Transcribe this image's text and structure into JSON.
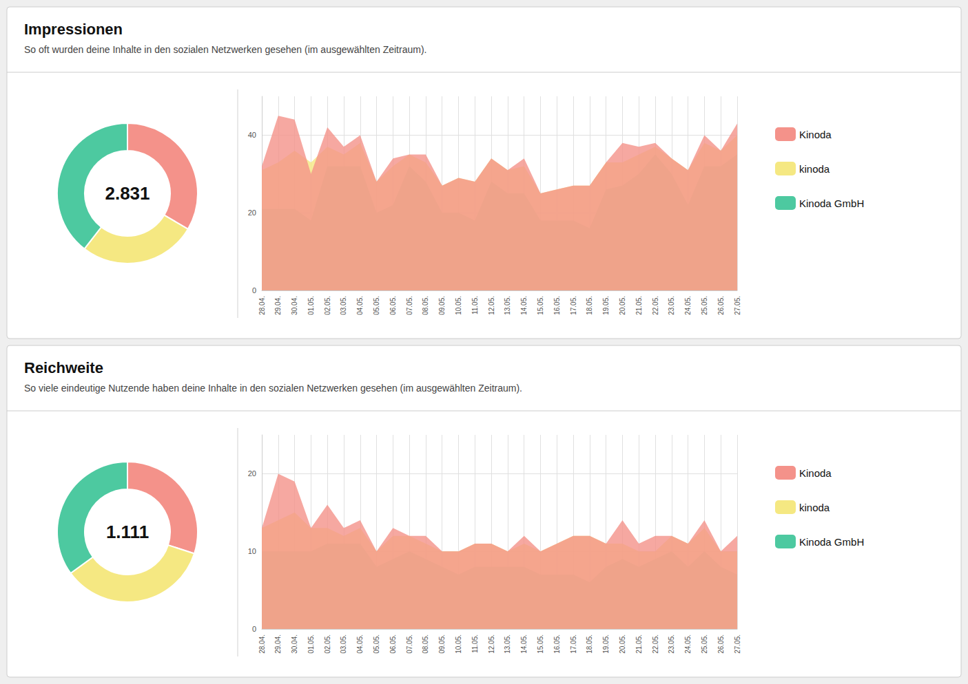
{
  "chart_data": [
    {
      "type": "pie",
      "categories": [
        "Kinoda",
        "kinoda",
        "Kinoda GmbH"
      ],
      "values": [
        0.335,
        0.27,
        0.395
      ],
      "colors": [
        "#F4928A",
        "#F5E882",
        "#4DC9A0"
      ],
      "annotations": [
        "2.831"
      ]
    },
    {
      "type": "area",
      "title": "Impressionen",
      "subtitle": "So oft wurden deine Inhalte in den sozialen Netzwerken gesehen (im ausgewählten Zeitraum).",
      "categories": [
        "28.04.",
        "29.04.",
        "30.04.",
        "01.05.",
        "02.05.",
        "03.05.",
        "04.05.",
        "05.05.",
        "06.05.",
        "07.05.",
        "08.05.",
        "09.05.",
        "10.05.",
        "11.05.",
        "12.05.",
        "13.05.",
        "14.05.",
        "15.05.",
        "16.05.",
        "17.05.",
        "18.05.",
        "19.05.",
        "20.05.",
        "21.05.",
        "22.05.",
        "23.05.",
        "24.05.",
        "25.05.",
        "26.05.",
        "27.05."
      ],
      "series": [
        {
          "name": "Kinoda",
          "color": "#F4928A",
          "values": [
            32,
            45,
            44,
            30,
            42,
            37,
            40,
            28,
            34,
            35,
            35,
            27,
            29,
            28,
            34,
            31,
            34,
            25,
            26,
            27,
            27,
            33,
            38,
            37,
            38,
            34,
            31,
            40,
            36,
            43
          ]
        },
        {
          "name": "kinoda",
          "color": "#F5E882",
          "values": [
            31,
            33,
            36,
            33,
            37,
            35,
            38,
            28,
            32,
            35,
            33,
            27,
            29,
            28,
            34,
            31,
            32,
            25,
            26,
            27,
            27,
            33,
            33,
            35,
            37,
            34,
            31,
            38,
            36,
            40
          ]
        },
        {
          "name": "Kinoda GmbH",
          "color": "#4DC9A0",
          "values": [
            21,
            21,
            21,
            18,
            32,
            32,
            32,
            20,
            22,
            32,
            28,
            20,
            20,
            18,
            28,
            25,
            25,
            18,
            18,
            18,
            16,
            26,
            27,
            30,
            35,
            30,
            22,
            32,
            32,
            35
          ]
        }
      ],
      "ylim": [
        0,
        50
      ],
      "yticks": [
        0,
        20,
        40
      ],
      "grid": true,
      "legend": "right"
    },
    {
      "type": "pie",
      "categories": [
        "Kinoda",
        "kinoda",
        "Kinoda GmbH"
      ],
      "values": [
        0.3,
        0.35,
        0.35
      ],
      "colors": [
        "#F4928A",
        "#F5E882",
        "#4DC9A0"
      ],
      "annotations": [
        "1.111"
      ]
    },
    {
      "type": "area",
      "title": "Reichweite",
      "subtitle": "So viele eindeutige Nutzende haben deine Inhalte in den sozialen Netzwerken gesehen (im ausgewählten Zeitraum).",
      "categories": [
        "28.04.",
        "29.04.",
        "30.04.",
        "01.05.",
        "02.05.",
        "03.05.",
        "04.05.",
        "05.05.",
        "06.05.",
        "07.05.",
        "08.05.",
        "09.05.",
        "10.05.",
        "11.05.",
        "12.05.",
        "13.05.",
        "14.05.",
        "15.05.",
        "16.05.",
        "17.05.",
        "18.05.",
        "19.05.",
        "20.05.",
        "21.05.",
        "22.05.",
        "23.05.",
        "24.05.",
        "25.05.",
        "26.05.",
        "27.05."
      ],
      "series": [
        {
          "name": "Kinoda",
          "color": "#F4928A",
          "values": [
            13,
            20,
            19,
            13,
            16,
            13,
            14,
            10,
            13,
            12,
            12,
            10,
            10,
            11,
            11,
            10,
            12,
            10,
            11,
            12,
            12,
            11,
            14,
            11,
            12,
            12,
            11,
            14,
            10,
            12
          ]
        },
        {
          "name": "kinoda",
          "color": "#F5E882",
          "values": [
            13,
            14,
            15,
            13,
            13,
            12,
            13,
            10,
            12,
            12,
            11,
            10,
            10,
            11,
            11,
            10,
            11,
            10,
            11,
            12,
            12,
            11,
            11,
            10,
            10,
            12,
            11,
            13,
            10,
            10
          ]
        },
        {
          "name": "Kinoda GmbH",
          "color": "#4DC9A0",
          "values": [
            10,
            10,
            10,
            10,
            11,
            11,
            11,
            8,
            9,
            10,
            9,
            8,
            7,
            8,
            8,
            8,
            8,
            7,
            7,
            7,
            6,
            8,
            9,
            8,
            9,
            10,
            8,
            10,
            8,
            7
          ]
        }
      ],
      "ylim": [
        0,
        25
      ],
      "yticks": [
        0,
        10,
        20
      ],
      "grid": true,
      "legend": "right"
    }
  ]
}
